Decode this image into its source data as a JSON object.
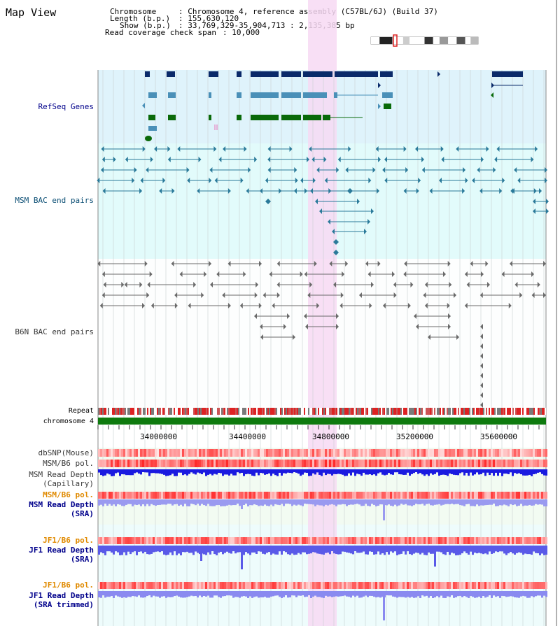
{
  "view_title": "Map View",
  "header": {
    "chromosome_key": "Chromosome",
    "chromosome_value": ": Chromosome 4, reference assembly (C57BL/6J) (Build 37)",
    "length_key": "Length (b.p.)",
    "length_value": ": 155,630,120",
    "show_key": "Show (b.p.)",
    "show_value": ": 33,769,329-35,904,713 : 2,135,385 bp",
    "coverage_key": "Read coverage check span",
    "coverage_value": ": 10,000"
  },
  "tracks": {
    "refseq": "RefSeq Genes",
    "msm_bac": "MSM BAC end pairs",
    "b6n_bac": "B6N BAC end pairs",
    "repeat": "Repeat",
    "chromosome": "chromosome 4",
    "dbsnp": "dbSNP(Mouse)",
    "msm_b6_pol": "MSM/B6 pol.",
    "msm_depth_cap_1": "MSM Read Depth",
    "msm_depth_cap_2": "(Capillary)",
    "msm_b6_pol_2": "MSM/B6 pol.",
    "msm_depth_sra_1": "MSM Read Depth",
    "msm_depth_sra_2": "(SRA)",
    "jf1_b6_pol": "JF1/B6 pol.",
    "jf1_depth_sra_1": "JF1 Read Depth",
    "jf1_depth_sra_2": "(SRA)",
    "jf1_b6_pol_2": "JF1/B6 pol.",
    "jf1_depth_trim_1": "JF1 Read Depth",
    "jf1_depth_trim_2": "(SRA trimmed)"
  },
  "axis_ticks": [
    "34000000",
    "34400000",
    "34800000",
    "35200000",
    "35600000"
  ],
  "colors": {
    "refseq_bg": "#dff3fb",
    "msm_bg": "#e2fbfb",
    "highlight": "#f7d9f3",
    "dark_blue": "#0a2a6a",
    "mid_blue": "#4a90b8",
    "green": "#0a6a0a",
    "label_blue": "#00008b",
    "label_teal": "#0b4e74",
    "label_orange": "#e08a00",
    "label_gray": "#3a3a3a"
  }
}
